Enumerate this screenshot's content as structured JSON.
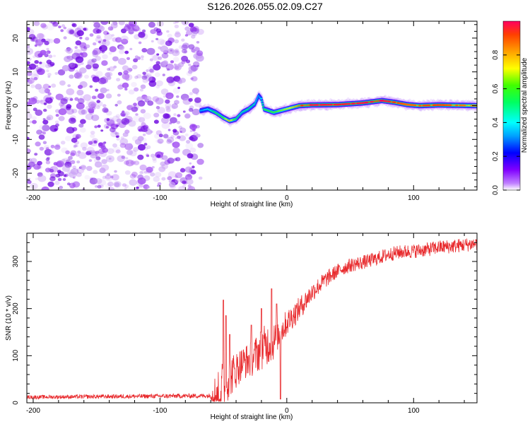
{
  "title": "S126.2026.055.02.09.C27",
  "colorbar": {
    "label": "Normalized spectral amplitude",
    "ticks": [
      0.0,
      0.2,
      0.4,
      0.6,
      0.8
    ],
    "tick_labels": [
      "0.0",
      "0.2",
      "0.4",
      "0.6",
      "0.8"
    ],
    "range": [
      0,
      1
    ],
    "colormap": [
      "#ffffff",
      "#a000ff",
      "#0000ff",
      "#00ffff",
      "#00ff00",
      "#ffff00",
      "#ff8000",
      "#ff0040"
    ]
  },
  "chart_data": [
    {
      "type": "heatmap",
      "name": "spectrogram",
      "title": "S126.2026.055.02.09.C27",
      "xlabel": "Height of straight line (km)",
      "ylabel": "Frequency (Hz)",
      "xlim": [
        -205,
        150
      ],
      "ylim": [
        -25,
        25
      ],
      "xticks": [
        -200,
        -100,
        0,
        100
      ],
      "xtick_labels": [
        "-200",
        "-100",
        "0",
        "100"
      ],
      "yticks": [
        -20,
        -10,
        0,
        10,
        20
      ],
      "ytick_labels": [
        "-20",
        "-10",
        "0",
        "10",
        "20"
      ],
      "noise_region_x": [
        -205,
        -68
      ],
      "noise_color": "#8a2be2",
      "ridge": {
        "x": [
          -68,
          -62,
          -56,
          -50,
          -45,
          -40,
          -35,
          -30,
          -25,
          -22,
          -20,
          -18,
          -14,
          -10,
          -5,
          0,
          5,
          10,
          20,
          40,
          60,
          75,
          85,
          95,
          105,
          120,
          135,
          150
        ],
        "freq": [
          -1.5,
          -1.0,
          -2.0,
          -3.5,
          -4.5,
          -4.0,
          -2.0,
          -1.0,
          0.5,
          3.0,
          2.0,
          -1.0,
          -1.5,
          -2.0,
          -1.5,
          -1.0,
          -0.5,
          0.0,
          0.2,
          0.3,
          0.8,
          1.5,
          1.0,
          0.3,
          0.0,
          0.2,
          0.1,
          0.0
        ],
        "amp": [
          0.35,
          0.4,
          0.55,
          0.6,
          0.8,
          0.55,
          0.45,
          0.5,
          0.45,
          0.35,
          0.4,
          0.55,
          0.6,
          0.6,
          0.65,
          0.7,
          0.75,
          0.85,
          0.9,
          0.88,
          0.9,
          0.92,
          0.85,
          0.8,
          0.82,
          0.85,
          0.8,
          0.75
        ]
      }
    },
    {
      "type": "line",
      "name": "snr",
      "xlabel": "Height of straight line (km)",
      "ylabel": "SNR (10 * v/v)",
      "xlim": [
        -205,
        150
      ],
      "ylim": [
        0,
        360
      ],
      "xticks": [
        -200,
        -100,
        0,
        100
      ],
      "xtick_labels": [
        "-200",
        "-100",
        "0",
        "100"
      ],
      "yticks": [
        0,
        100,
        200,
        300
      ],
      "ytick_labels": [
        "0",
        "100",
        "200",
        "300"
      ],
      "color": "#e8282b",
      "x": [
        -205,
        -60,
        -55,
        -50,
        -45,
        -40,
        -35,
        -30,
        -25,
        -20,
        -15,
        -10,
        -5,
        0,
        10,
        20,
        30,
        40,
        50,
        60,
        70,
        80,
        90,
        100,
        110,
        120,
        130,
        140,
        150
      ],
      "y": [
        12,
        15,
        20,
        40,
        55,
        70,
        85,
        90,
        100,
        115,
        125,
        130,
        150,
        170,
        200,
        235,
        260,
        280,
        292,
        298,
        305,
        315,
        320,
        322,
        325,
        330,
        332,
        335,
        338
      ],
      "noise": [
        4,
        5,
        60,
        50,
        45,
        40,
        35,
        38,
        40,
        45,
        45,
        40,
        30,
        28,
        25,
        20,
        18,
        15,
        15,
        15,
        15,
        15,
        15,
        15,
        15,
        15,
        15,
        15,
        15
      ],
      "spikes": [
        {
          "x": -50,
          "y": 218
        },
        {
          "x": -48,
          "y": 185
        },
        {
          "x": -45,
          "y": 145
        },
        {
          "x": -28,
          "y": 165
        },
        {
          "x": -20,
          "y": 200
        },
        {
          "x": -12,
          "y": 242
        },
        {
          "x": -8,
          "y": 210
        },
        {
          "x": -5,
          "y": 8
        }
      ]
    }
  ]
}
